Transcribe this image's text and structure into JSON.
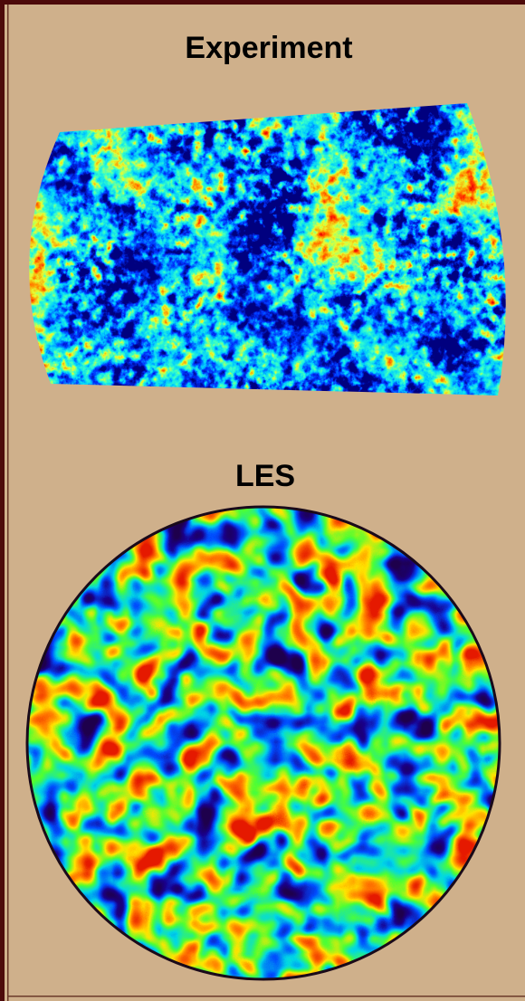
{
  "panels": [
    {
      "title": "Experiment"
    },
    {
      "title": "LES"
    }
  ]
}
